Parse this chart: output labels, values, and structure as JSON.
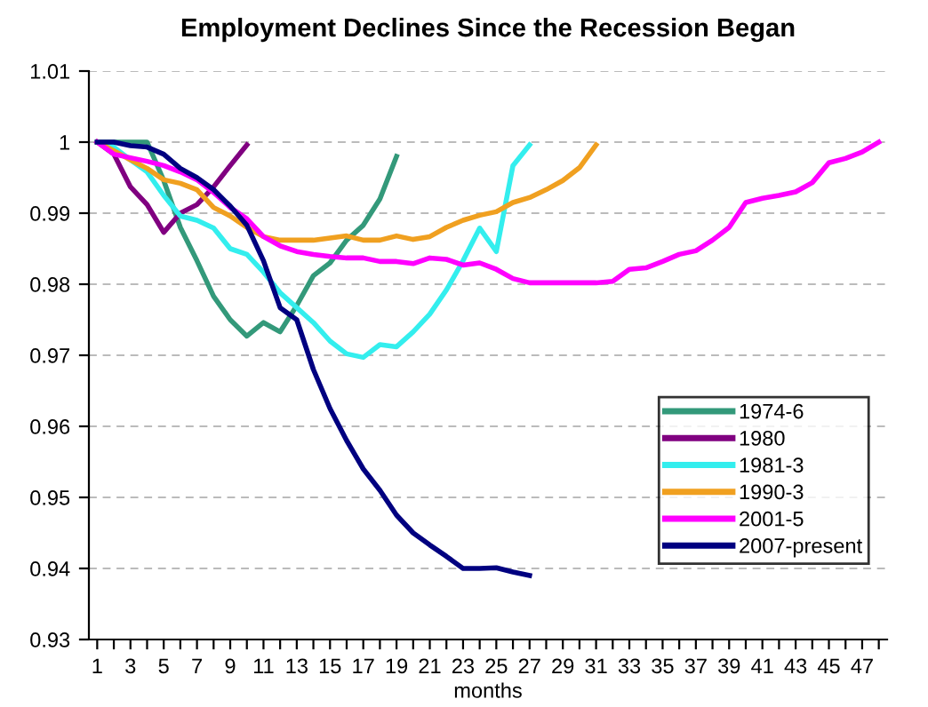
{
  "chart_data": {
    "type": "line",
    "title": "Employment Declines Since the Recession Began",
    "xlabel": "months",
    "x": [
      1,
      2,
      3,
      4,
      5,
      6,
      7,
      8,
      9,
      10,
      11,
      12,
      13,
      14,
      15,
      16,
      17,
      18,
      19,
      20,
      21,
      22,
      23,
      24,
      25,
      26,
      27,
      28,
      29,
      30,
      31,
      32,
      33,
      34,
      35,
      36,
      37,
      38,
      39,
      40,
      41,
      42,
      43,
      44,
      45,
      46,
      47,
      48
    ],
    "xlim": [
      0.5,
      48.5
    ],
    "xticks": [
      1,
      {
        "value": 2,
        "label": null
      },
      3,
      {
        "value": 4,
        "label": null
      },
      5,
      {
        "value": 6,
        "label": null
      },
      7,
      {
        "value": 8,
        "label": null
      },
      9,
      {
        "value": 10,
        "label": null
      },
      11,
      {
        "value": 12,
        "label": null
      },
      13,
      {
        "value": 14,
        "label": null
      },
      15,
      {
        "value": 16,
        "label": null
      },
      17,
      {
        "value": 18,
        "label": null
      },
      19,
      {
        "value": 20,
        "label": null
      },
      21,
      {
        "value": 22,
        "label": null
      },
      23,
      {
        "value": 24,
        "label": null
      },
      25,
      {
        "value": 26,
        "label": null
      },
      27,
      {
        "value": 28,
        "label": null
      },
      29,
      {
        "value": 30,
        "label": null
      },
      31,
      {
        "value": 32,
        "label": null
      },
      33,
      {
        "value": 34,
        "label": null
      },
      35,
      {
        "value": 36,
        "label": null
      },
      37,
      {
        "value": 38,
        "label": null
      },
      39,
      {
        "value": 40,
        "label": null
      },
      41,
      {
        "value": 42,
        "label": null
      },
      43,
      {
        "value": 44,
        "label": null
      },
      45,
      {
        "value": 46,
        "label": null
      },
      47,
      {
        "value": 48,
        "label": null
      }
    ],
    "ylim": [
      0.93,
      1.01
    ],
    "yticks": [
      0.93,
      0.94,
      0.95,
      0.96,
      0.97,
      0.98,
      0.99,
      1,
      1.01
    ],
    "grid": "y",
    "legend": "right",
    "marker": "none",
    "line_style": "solid",
    "series": [
      {
        "name": "1974-6",
        "color": "#33997a",
        "values": [
          1.0,
          1.0,
          1.0,
          1.0,
          0.9946,
          0.988,
          0.9833,
          0.9783,
          0.975,
          0.9727,
          0.9746,
          0.9733,
          0.977,
          0.9812,
          0.983,
          0.9862,
          0.9883,
          0.992,
          0.998,
          null,
          null,
          null,
          null,
          null,
          null,
          null,
          null,
          null,
          null,
          null,
          null,
          null,
          null,
          null,
          null,
          null,
          null,
          null,
          null,
          null,
          null,
          null,
          null,
          null,
          null,
          null,
          null,
          null
        ]
      },
      {
        "name": "1980",
        "color": "#800080",
        "values": [
          1.0,
          0.9983,
          0.9937,
          0.9912,
          0.9873,
          0.99,
          0.9912,
          0.9937,
          0.9967,
          0.9996,
          null,
          null,
          null,
          null,
          null,
          null,
          null,
          null,
          null,
          null,
          null,
          null,
          null,
          null,
          null,
          null,
          null,
          null,
          null,
          null,
          null,
          null,
          null,
          null,
          null,
          null,
          null,
          null,
          null,
          null,
          null,
          null,
          null,
          null,
          null,
          null,
          null,
          null
        ]
      },
      {
        "name": "1981-3",
        "color": "#33eeee",
        "values": [
          1.0,
          0.9993,
          0.9975,
          0.9958,
          0.9925,
          0.9896,
          0.989,
          0.9879,
          0.985,
          0.9842,
          0.9817,
          0.9788,
          0.9767,
          0.9746,
          0.972,
          0.9702,
          0.9697,
          0.9715,
          0.9712,
          0.9733,
          0.9758,
          0.9792,
          0.9833,
          0.9879,
          0.9846,
          0.9967,
          0.9996,
          null,
          null,
          null,
          null,
          null,
          null,
          null,
          null,
          null,
          null,
          null,
          null,
          null,
          null,
          null,
          null,
          null,
          null,
          null,
          null,
          null
        ]
      },
      {
        "name": "1990-3",
        "color": "#f0a020",
        "values": [
          1.0,
          0.9988,
          0.9975,
          0.9963,
          0.9947,
          0.9942,
          0.9933,
          0.9908,
          0.9896,
          0.988,
          0.9867,
          0.9862,
          0.9862,
          0.9862,
          0.9865,
          0.9868,
          0.9862,
          0.9862,
          0.9868,
          0.9863,
          0.9867,
          0.988,
          0.989,
          0.9897,
          0.9902,
          0.9915,
          0.9922,
          0.9933,
          0.9946,
          0.9964,
          0.9996,
          null,
          null,
          null,
          null,
          null,
          null,
          null,
          null,
          null,
          null,
          null,
          null,
          null,
          null,
          null,
          null,
          null
        ]
      },
      {
        "name": "2001-5",
        "color": "#ff00ff",
        "values": [
          1.0,
          0.9983,
          0.9978,
          0.9973,
          0.9967,
          0.9958,
          0.9947,
          0.9929,
          0.9908,
          0.9892,
          0.9867,
          0.9854,
          0.9846,
          0.9842,
          0.9839,
          0.9837,
          0.9837,
          0.9832,
          0.9832,
          0.9829,
          0.9837,
          0.9835,
          0.9827,
          0.983,
          0.9821,
          0.9808,
          0.9802,
          0.9802,
          0.9802,
          0.9802,
          0.9802,
          0.9804,
          0.9821,
          0.9823,
          0.9832,
          0.9842,
          0.9847,
          0.9862,
          0.988,
          0.9915,
          0.9921,
          0.9925,
          0.993,
          0.9943,
          0.9971,
          0.9977,
          0.9986,
          1.0
        ]
      },
      {
        "name": "2007-present",
        "color": "#000080",
        "values": [
          1.0,
          1.0,
          0.9995,
          0.9993,
          0.9983,
          0.9963,
          0.995,
          0.9933,
          0.991,
          0.9883,
          0.9833,
          0.9767,
          0.975,
          0.968,
          0.9625,
          0.958,
          0.954,
          0.951,
          0.9475,
          0.945,
          0.9433,
          0.9417,
          0.94,
          0.94,
          0.9401,
          0.9395,
          0.939,
          null,
          null,
          null,
          null,
          null,
          null,
          null,
          null,
          null,
          null,
          null,
          null,
          null,
          null,
          null,
          null,
          null,
          null,
          null,
          null,
          null
        ]
      }
    ]
  }
}
